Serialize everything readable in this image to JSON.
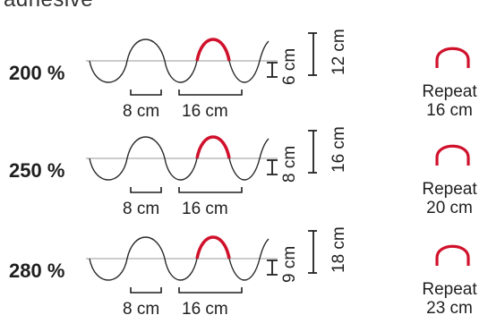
{
  "heading": "adhesive",
  "colors": {
    "accent": "#d0112b",
    "wave": "#2a2a2a",
    "axis": "#9a9a9a",
    "text": "#1f1f1f"
  },
  "rows": [
    {
      "stretch": "200 %",
      "wavelength": "8 cm",
      "repeat_span": "16 cm",
      "amplitude": "6 cm",
      "peak_to_peak": "12 cm",
      "repeat_word": "Repeat",
      "repeat_value": "16 cm"
    },
    {
      "stretch": "250 %",
      "wavelength": "8 cm",
      "repeat_span": "16 cm",
      "amplitude": "8 cm",
      "peak_to_peak": "16 cm",
      "repeat_word": "Repeat",
      "repeat_value": "20 cm"
    },
    {
      "stretch": "280 %",
      "wavelength": "8 cm",
      "repeat_span": "16 cm",
      "amplitude": "9 cm",
      "peak_to_peak": "18 cm",
      "repeat_word": "Repeat",
      "repeat_value": "23 cm"
    }
  ]
}
